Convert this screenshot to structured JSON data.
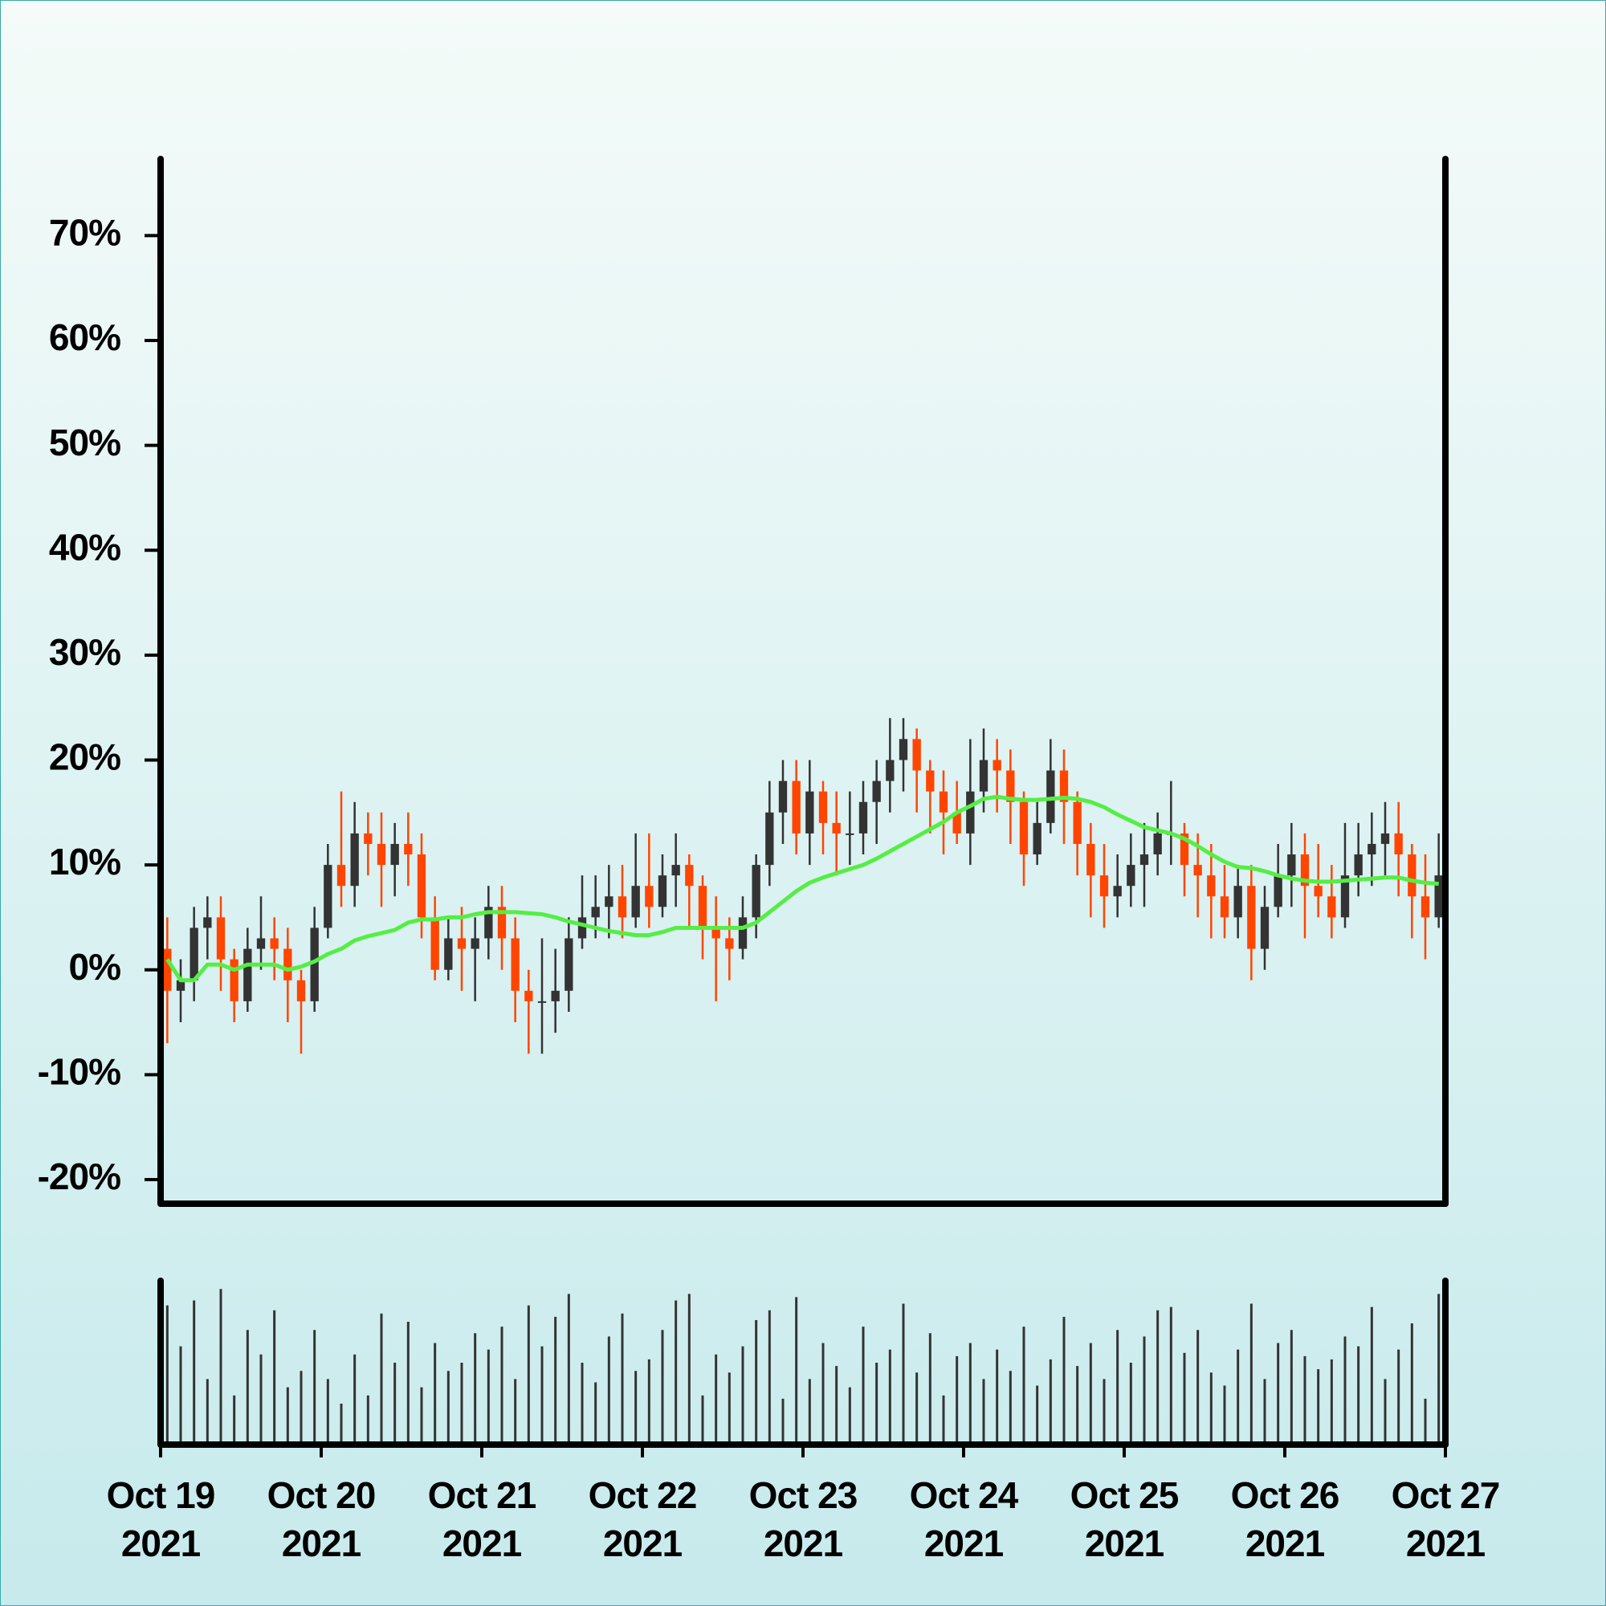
{
  "chart_data": {
    "type": "candlestick",
    "x": [
      1,
      3,
      5,
      7,
      9,
      11,
      13,
      15,
      17,
      19,
      21,
      23,
      25,
      27,
      29,
      31,
      33,
      35,
      37,
      39,
      41,
      43,
      45,
      47,
      49,
      51,
      53,
      55,
      57,
      59,
      61,
      63,
      65,
      67,
      69,
      71,
      73,
      75,
      77,
      79,
      81,
      83,
      85,
      87,
      89,
      91,
      93,
      95,
      97,
      99,
      101,
      103,
      105,
      107,
      109,
      111,
      113,
      115,
      117,
      119,
      121,
      123,
      125,
      127,
      129,
      131,
      133,
      135,
      137,
      139,
      141,
      143,
      145,
      147,
      149,
      151,
      153,
      155,
      157,
      159,
      161,
      163,
      165,
      167,
      169,
      171,
      173,
      175,
      177,
      179,
      181,
      183,
      185,
      187,
      189,
      191
    ],
    "open": [
      2,
      -2,
      -1,
      4,
      5,
      1,
      -3,
      2,
      3,
      2,
      -1,
      -3,
      4,
      10,
      8,
      13,
      12,
      10,
      12,
      11,
      5,
      0,
      3,
      2,
      3,
      6,
      3,
      -2,
      -3,
      -3,
      -2,
      3,
      5,
      6,
      7,
      5,
      8,
      6,
      9,
      10,
      8,
      4,
      3,
      2,
      5,
      10,
      15,
      18,
      13,
      17,
      14,
      13,
      13,
      16,
      18,
      20,
      22,
      19,
      17,
      15,
      13,
      17,
      20,
      19,
      16,
      11,
      14,
      19,
      16,
      12,
      9,
      7,
      8,
      10,
      11,
      13,
      13,
      10,
      9,
      7,
      5,
      8,
      2,
      6,
      9,
      11,
      8,
      7,
      5,
      9,
      11,
      12,
      13,
      11,
      7,
      5
    ],
    "high": [
      5,
      1,
      6,
      7,
      7,
      2,
      4,
      7,
      5,
      4,
      0,
      6,
      12,
      17,
      16,
      15,
      15,
      14,
      15,
      13,
      7,
      5,
      6,
      5,
      8,
      8,
      5,
      0,
      3,
      2,
      5,
      9,
      9,
      10,
      10,
      13,
      13,
      11,
      13,
      11,
      9,
      7,
      5,
      7,
      11,
      18,
      20,
      20,
      20,
      18,
      17,
      17,
      18,
      20,
      24,
      24,
      23,
      20,
      19,
      18,
      22,
      23,
      22,
      21,
      17,
      16,
      22,
      21,
      17,
      14,
      12,
      11,
      13,
      14,
      15,
      18,
      14,
      13,
      12,
      10,
      10,
      10,
      8,
      12,
      14,
      13,
      12,
      10,
      14,
      14,
      15,
      16,
      16,
      12,
      11,
      13
    ],
    "low": [
      -7,
      -5,
      -3,
      1,
      -2,
      -5,
      -4,
      0,
      -1,
      -5,
      -8,
      -4,
      3,
      6,
      6,
      9,
      6,
      7,
      8,
      3,
      -1,
      -1,
      -2,
      -3,
      1,
      0,
      -5,
      -8,
      -8,
      -6,
      -4,
      2,
      3,
      3,
      3,
      4,
      4,
      5,
      6,
      4,
      1,
      -3,
      -1,
      1,
      3,
      8,
      12,
      11,
      10,
      11,
      9,
      10,
      11,
      12,
      15,
      17,
      15,
      13,
      11,
      12,
      10,
      15,
      15,
      12,
      8,
      10,
      13,
      12,
      9,
      5,
      4,
      5,
      6,
      6,
      9,
      10,
      7,
      5,
      3,
      3,
      3,
      -1,
      0,
      5,
      6,
      3,
      5,
      3,
      4,
      7,
      8,
      9,
      7,
      3,
      1,
      4
    ],
    "close": [
      -2,
      -1,
      4,
      5,
      1,
      -3,
      2,
      3,
      2,
      -1,
      -3,
      4,
      10,
      8,
      13,
      12,
      10,
      12,
      11,
      5,
      0,
      3,
      2,
      3,
      6,
      3,
      -2,
      -3,
      -3,
      -2,
      3,
      5,
      6,
      7,
      5,
      8,
      6,
      9,
      10,
      8,
      4,
      3,
      2,
      5,
      10,
      15,
      18,
      13,
      17,
      14,
      13,
      13,
      16,
      18,
      20,
      22,
      19,
      17,
      15,
      13,
      17,
      20,
      19,
      16,
      11,
      14,
      19,
      16,
      12,
      9,
      7,
      8,
      10,
      11,
      13,
      13,
      10,
      9,
      7,
      5,
      8,
      2,
      6,
      9,
      11,
      8,
      7,
      5,
      9,
      11,
      12,
      13,
      11,
      7,
      5,
      9
    ],
    "up_color": "#333333",
    "down_color": "#ff4500",
    "ma": {
      "color": "#55ee44",
      "values": [
        1,
        -1,
        -1,
        0.5,
        0.5,
        0,
        0.5,
        0.5,
        0.5,
        0,
        0.3,
        0.8,
        1.5,
        2,
        2.8,
        3.2,
        3.5,
        3.8,
        4.5,
        4.8,
        4.8,
        5,
        5,
        5.3,
        5.5,
        5.5,
        5.5,
        5.4,
        5.3,
        5,
        4.6,
        4.3,
        4,
        3.7,
        3.5,
        3.3,
        3.3,
        3.6,
        4,
        4,
        4,
        4,
        4,
        4,
        4.5,
        5.5,
        6.5,
        7.5,
        8.3,
        8.8,
        9.2,
        9.6,
        10,
        10.6,
        11.3,
        12,
        12.7,
        13.4,
        14.1,
        15,
        15.6,
        16.3,
        16.5,
        16.3,
        16.2,
        16.2,
        16.3,
        16.4,
        16.3,
        16,
        15.5,
        14.8,
        14.2,
        13.6,
        13.3,
        13,
        12.5,
        11.8,
        11,
        10.3,
        9.8,
        9.7,
        9.4,
        9,
        8.7,
        8.5,
        8.4,
        8.4,
        8.5,
        8.6,
        8.7,
        8.8,
        8.8,
        8.5,
        8.3,
        8.2
      ]
    },
    "volume": {
      "color": "#333333",
      "ylim": [
        0,
        100
      ],
      "values": [
        85,
        60,
        88,
        40,
        95,
        30,
        70,
        55,
        82,
        35,
        45,
        70,
        40,
        25,
        55,
        30,
        80,
        50,
        75,
        35,
        62,
        45,
        50,
        68,
        58,
        72,
        40,
        85,
        60,
        78,
        92,
        50,
        38,
        66,
        80,
        45,
        52,
        70,
        88,
        92,
        30,
        55,
        44,
        60,
        76,
        82,
        28,
        90,
        40,
        62,
        48,
        35,
        72,
        50,
        58,
        86,
        44,
        68,
        30,
        54,
        62,
        40,
        58,
        45,
        72,
        36,
        52,
        78,
        48,
        62,
        40,
        70,
        50,
        66,
        82,
        84,
        56,
        70,
        44,
        36,
        58,
        86,
        40,
        62,
        70,
        54,
        46,
        52,
        66,
        60,
        84,
        40,
        58,
        74,
        28,
        92
      ]
    },
    "xlim": [
      0,
      192
    ],
    "xticks": [
      {
        "value": 0,
        "label": [
          "Oct 19",
          "2021"
        ]
      },
      {
        "value": 24,
        "label": [
          "Oct 20",
          "2021"
        ]
      },
      {
        "value": 48,
        "label": [
          "Oct 21",
          "2021"
        ]
      },
      {
        "value": 72,
        "label": [
          "Oct 22",
          "2021"
        ]
      },
      {
        "value": 96,
        "label": [
          "Oct 23",
          "2021"
        ]
      },
      {
        "value": 120,
        "label": [
          "Oct 24",
          "2021"
        ]
      },
      {
        "value": 144,
        "label": [
          "Oct 25",
          "2021"
        ]
      },
      {
        "value": 168,
        "label": [
          "Oct 26",
          "2021"
        ]
      },
      {
        "value": 192,
        "label": [
          "Oct 27",
          "2021"
        ]
      }
    ],
    "ylim": [
      -22.3,
      77.3
    ],
    "yticks": [
      {
        "value": -20,
        "label": "-20%"
      },
      {
        "value": -10,
        "label": "-10%"
      },
      {
        "value": 0,
        "label": "0%"
      },
      {
        "value": 10,
        "label": "10%"
      },
      {
        "value": 20,
        "label": "20%"
      },
      {
        "value": 30,
        "label": "30%"
      },
      {
        "value": 40,
        "label": "40%"
      },
      {
        "value": 50,
        "label": "50%"
      },
      {
        "value": 60,
        "label": "60%"
      },
      {
        "value": 70,
        "label": "70%"
      }
    ]
  }
}
